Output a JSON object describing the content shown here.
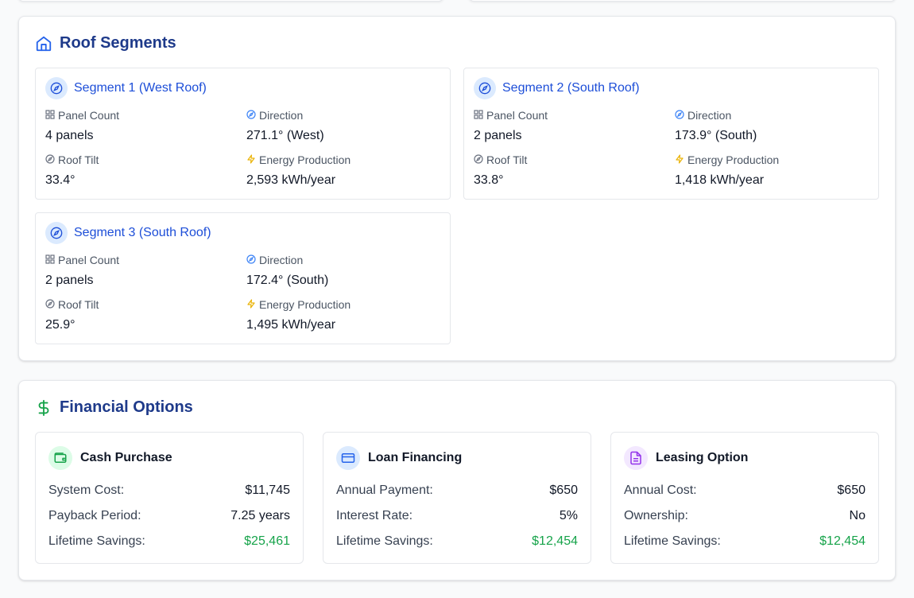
{
  "roof_segments": {
    "title": "Roof Segments",
    "segments": [
      {
        "title": "Segment 1 (West Roof)",
        "panel_count_label": "Panel Count",
        "panel_count": "4 panels",
        "direction_label": "Direction",
        "direction": "271.1° (West)",
        "tilt_label": "Roof Tilt",
        "tilt": "33.4°",
        "energy_label": "Energy Production",
        "energy": "2,593 kWh/year"
      },
      {
        "title": "Segment 2 (South Roof)",
        "panel_count_label": "Panel Count",
        "panel_count": "2 panels",
        "direction_label": "Direction",
        "direction": "173.9° (South)",
        "tilt_label": "Roof Tilt",
        "tilt": "33.8°",
        "energy_label": "Energy Production",
        "energy": "1,418 kWh/year"
      },
      {
        "title": "Segment 3 (South Roof)",
        "panel_count_label": "Panel Count",
        "panel_count": "2 panels",
        "direction_label": "Direction",
        "direction": "172.4° (South)",
        "tilt_label": "Roof Tilt",
        "tilt": "25.9°",
        "energy_label": "Energy Production",
        "energy": "1,495 kWh/year"
      }
    ]
  },
  "financial": {
    "title": "Financial Options",
    "options": [
      {
        "title": "Cash Purchase",
        "icon": "wallet-icon",
        "rows": [
          {
            "label": "System Cost:",
            "value": "$11,745"
          },
          {
            "label": "Payback Period:",
            "value": "7.25 years"
          },
          {
            "label": "Lifetime Savings:",
            "value": "$25,461"
          }
        ]
      },
      {
        "title": "Loan Financing",
        "icon": "credit-card-icon",
        "rows": [
          {
            "label": "Annual Payment:",
            "value": "$650"
          },
          {
            "label": "Interest Rate:",
            "value": "5%"
          },
          {
            "label": "Lifetime Savings:",
            "value": "$12,454"
          }
        ]
      },
      {
        "title": "Leasing Option",
        "icon": "document-icon",
        "rows": [
          {
            "label": "Annual Cost:",
            "value": "$650"
          },
          {
            "label": "Ownership:",
            "value": "No"
          },
          {
            "label": "Lifetime Savings:",
            "value": "$12,454"
          }
        ]
      }
    ]
  },
  "colors": {
    "heading": "#1e3a8a",
    "segment_title": "#1d4ed8",
    "savings": "#16a34a",
    "energy_icon": "#eab308"
  }
}
